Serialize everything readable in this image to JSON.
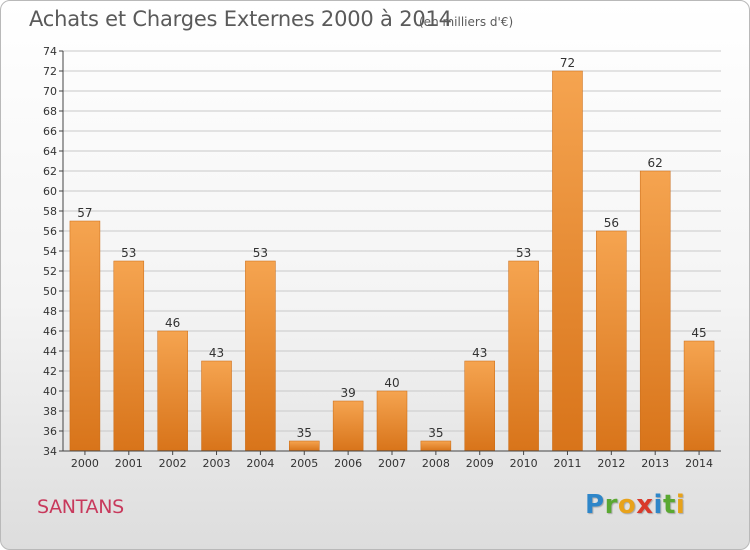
{
  "header": {
    "title": "Achats et Charges Externes 2000 à 2014",
    "subtitle": "(en milliers d'€)"
  },
  "footer": {
    "commune": "SANTANS",
    "logo": {
      "letters": [
        {
          "ch": "P",
          "color": "#2e86c9"
        },
        {
          "ch": "r",
          "color": "#5aa832"
        },
        {
          "ch": "o",
          "color": "#e8a21a"
        },
        {
          "ch": "x",
          "color": "#d93a2b"
        },
        {
          "ch": "i",
          "color": "#2e86c9"
        },
        {
          "ch": "t",
          "color": "#5aa832"
        },
        {
          "ch": "i",
          "color": "#e8a21a"
        }
      ]
    }
  },
  "colors": {
    "bar_light": "#f5a450",
    "bar_dark": "#d8741a",
    "grid": "#c9c9c9",
    "axis": "#444444",
    "text": "#333333"
  },
  "chart_data": {
    "type": "bar",
    "title": "Achats et Charges Externes 2000 à 2014",
    "subtitle": "(en milliers d'€)",
    "categories": [
      "2000",
      "2001",
      "2002",
      "2003",
      "2004",
      "2005",
      "2006",
      "2007",
      "2008",
      "2009",
      "2010",
      "2011",
      "2012",
      "2013",
      "2014"
    ],
    "values": [
      57,
      53,
      46,
      43,
      53,
      35,
      39,
      40,
      35,
      43,
      53,
      72,
      56,
      62,
      45
    ],
    "ylim": [
      34,
      74
    ],
    "yticks": [
      34,
      36,
      38,
      40,
      42,
      44,
      46,
      48,
      50,
      52,
      54,
      56,
      58,
      60,
      62,
      64,
      66,
      68,
      70,
      72,
      74
    ],
    "grid": true,
    "xlabel": "",
    "ylabel": ""
  }
}
